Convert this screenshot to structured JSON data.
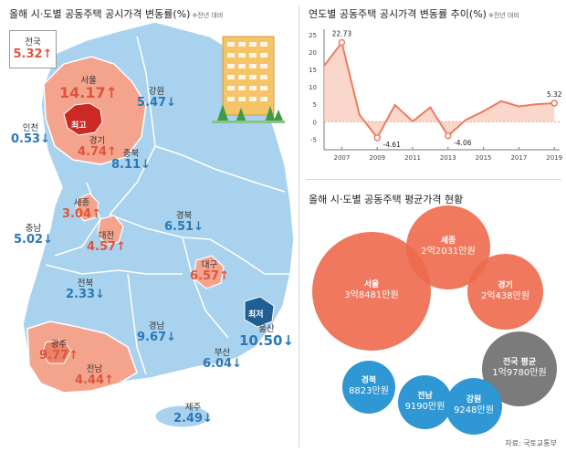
{
  "map_panel": {
    "title": "올해 시·도별 공동주택 공시가격 변동률(%)",
    "note": "※전년 대비",
    "national": {
      "name": "전국",
      "value": "5.32",
      "dir": "up"
    },
    "highest_tag": "최고",
    "lowest_tag": "최저",
    "regions": [
      {
        "name": "서울",
        "value": "14.17",
        "dir": "up"
      },
      {
        "name": "인천",
        "value": "0.53",
        "dir": "down"
      },
      {
        "name": "경기",
        "value": "4.74",
        "dir": "up"
      },
      {
        "name": "강원",
        "value": "5.47",
        "dir": "down"
      },
      {
        "name": "충북",
        "value": "8.11",
        "dir": "down"
      },
      {
        "name": "세종",
        "value": "3.04",
        "dir": "up"
      },
      {
        "name": "충남",
        "value": "5.02",
        "dir": "down"
      },
      {
        "name": "대전",
        "value": "4.57",
        "dir": "up"
      },
      {
        "name": "경북",
        "value": "6.51",
        "dir": "down"
      },
      {
        "name": "대구",
        "value": "6.57",
        "dir": "up"
      },
      {
        "name": "전북",
        "value": "2.33",
        "dir": "down"
      },
      {
        "name": "경남",
        "value": "9.67",
        "dir": "down"
      },
      {
        "name": "울산",
        "value": "10.50",
        "dir": "down"
      },
      {
        "name": "부산",
        "value": "6.04",
        "dir": "down"
      },
      {
        "name": "광주",
        "value": "9.77",
        "dir": "up"
      },
      {
        "name": "전남",
        "value": "4.44",
        "dir": "up"
      },
      {
        "name": "제주",
        "value": "2.49",
        "dir": "down"
      }
    ]
  },
  "chart_data": [
    {
      "type": "line",
      "title": "연도별 공동주택 공시가격 변동률 추이(%)",
      "note": "※전년 대비",
      "x": [
        2006,
        2007,
        2008,
        2009,
        2010,
        2011,
        2012,
        2013,
        2014,
        2015,
        2016,
        2017,
        2018,
        2019
      ],
      "y": [
        16.0,
        22.73,
        2.0,
        -4.61,
        4.8,
        0.1,
        4.1,
        -4.06,
        0.5,
        3.0,
        5.9,
        4.4,
        5.0,
        5.32
      ],
      "labeled_points": {
        "2007": "22.73",
        "2009": "-4.61",
        "2013": "-4.06",
        "2019": "5.32"
      },
      "x_ticks": [
        "2007",
        "2009",
        "2011",
        "2013",
        "2015",
        "2017",
        "2019"
      ],
      "y_ticks": [
        "25",
        "20",
        "15",
        "10",
        "5",
        "0",
        "-5"
      ],
      "ylim": [
        -7,
        26
      ],
      "xlim": [
        2006,
        2019.3
      ],
      "grid": false,
      "fill": "area",
      "color": "#ee7a5e"
    },
    {
      "type": "bubble",
      "title": "올해 시·도별 공동주택 평균가격 현황",
      "unit": "만원",
      "items": [
        {
          "name": "서울",
          "label": "3억8481만원",
          "value": 38481,
          "color": "#ee6a4d"
        },
        {
          "name": "세종",
          "label": "2억2031만원",
          "value": 22031,
          "color": "#ee6a4d"
        },
        {
          "name": "경기",
          "label": "2억438만원",
          "value": 20438,
          "color": "#ee6a4d"
        },
        {
          "name": "전국 평균",
          "label": "1억9780만원",
          "value": 19780,
          "color": "#7b7b7b"
        },
        {
          "name": "경북",
          "label": "8823만원",
          "value": 8823,
          "color": "#2f97d3"
        },
        {
          "name": "전남",
          "label": "9190만원",
          "value": 9190,
          "color": "#2f97d3"
        },
        {
          "name": "강원",
          "label": "9248만원",
          "value": 9248,
          "color": "#2f97d3"
        }
      ]
    }
  ],
  "source": "자료: 국토교통부",
  "colors": {
    "down": "#2a78b8",
    "up": "#e0543d",
    "land": "#a9d2ef",
    "highlight": "#f4a48d",
    "lowest": "#1f5f94",
    "highest": "#cc2b25"
  }
}
